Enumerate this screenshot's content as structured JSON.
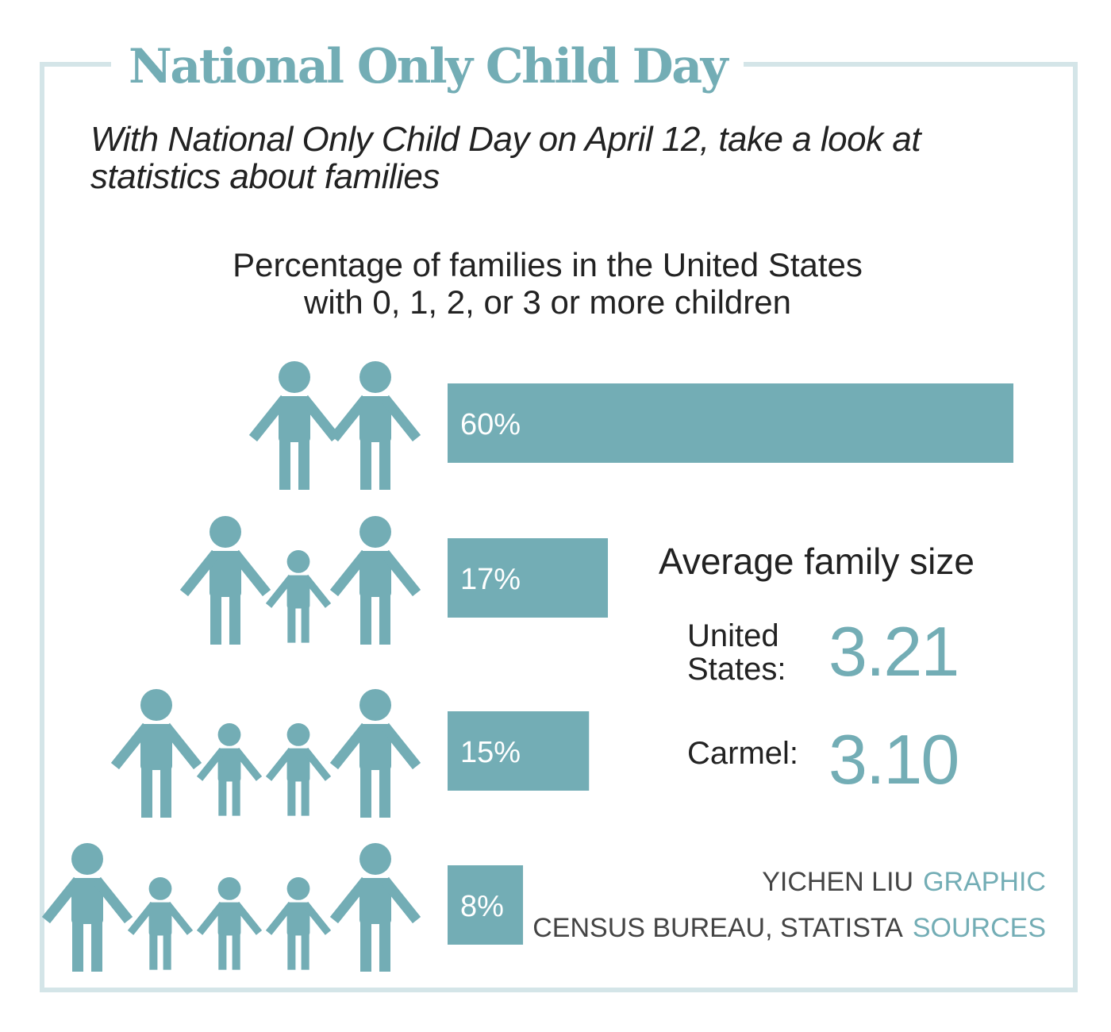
{
  "title": "National Only Child Day",
  "subtitle": "With National Only Child Day on April 12, take a look at statistics about families",
  "colors": {
    "accent": "#73adb5",
    "frame": "#d4e5e8",
    "text": "#222222"
  },
  "chart_data": {
    "type": "bar",
    "orientation": "horizontal",
    "title_lines": [
      "Percentage of families in the United States",
      "with 0, 1, 2, or 3 or more children"
    ],
    "values": [
      60,
      17,
      15,
      8
    ],
    "labels": [
      "60%",
      "17%",
      "15%",
      "8%"
    ],
    "children_per_row": [
      0,
      1,
      2,
      3
    ],
    "xlim": [
      0,
      60
    ],
    "grid": false,
    "legend": "none"
  },
  "average": {
    "title": "Average family size",
    "us_label_line1": "United",
    "us_label_line2": "States:",
    "us_value": "3.21",
    "carmel_label": "Carmel:",
    "carmel_value": "3.10"
  },
  "credits": {
    "graphic_name": "YICHEN LIU",
    "graphic_role": "GRAPHIC",
    "sources_name": "CENSUS BUREAU, STATISTA",
    "sources_role": "SOURCES"
  }
}
